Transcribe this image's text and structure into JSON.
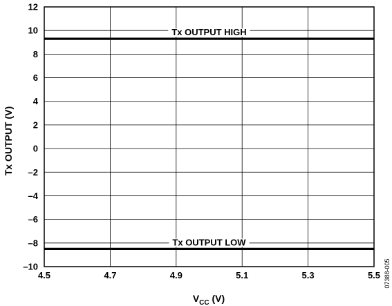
{
  "chart_data": {
    "type": "line",
    "xlabel_main": "V",
    "xlabel_sub": "CC",
    "xlabel_unit": " (V)",
    "ylabel": "Tx OUTPUT (V)",
    "xlim": [
      4.5,
      5.5
    ],
    "ylim": [
      -10,
      12
    ],
    "x_ticks": [
      "4.5",
      "4.7",
      "4.9",
      "5.1",
      "5.3",
      "5.5"
    ],
    "y_ticks": [
      "12",
      "10",
      "8",
      "6",
      "4",
      "2",
      "0",
      "–2",
      "–4",
      "–6",
      "–8",
      "–10"
    ],
    "grid": true,
    "series": [
      {
        "name": "Tx OUTPUT HIGH",
        "x": [
          4.5,
          5.5
        ],
        "y": [
          9.3,
          9.3
        ]
      },
      {
        "name": "Tx OUTPUT LOW",
        "x": [
          4.5,
          5.5
        ],
        "y": [
          -8.5,
          -8.5
        ]
      }
    ],
    "figure_code": "07388-005"
  }
}
